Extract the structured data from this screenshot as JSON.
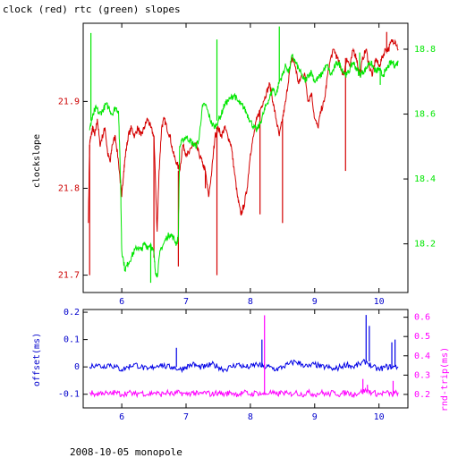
{
  "title": "clock (red) rtc (green) slopes",
  "footer": "2008-10-05 monopole",
  "colors": {
    "clock": "#d40000",
    "rtc": "#00e600",
    "offset": "#0000e6",
    "rnd_trip": "#ff00ff",
    "clock_axis": "#cc0000",
    "rtc_axis": "#00e600",
    "x_axis": "#0000cc",
    "offset_axis": "#0000cc",
    "rnd_axis": "#ff00ff"
  },
  "chart_data": [
    {
      "type": "line",
      "title": "clock (red) rtc (green) slopes",
      "xlabel": "",
      "ylabel": "clockslope",
      "xlim": [
        5.4,
        10.45
      ],
      "ylim": [
        21.68,
        21.99
      ],
      "y2lim": [
        18.05,
        18.88
      ],
      "xticks": [
        6,
        7,
        8,
        9,
        10
      ],
      "yticks": [
        21.7,
        21.8,
        21.9
      ],
      "y2ticks": [
        18.2,
        18.4,
        18.6,
        18.8
      ],
      "grid": false,
      "series": [
        {
          "name": "clock",
          "axis": "left",
          "x": [
            5.48,
            5.5,
            5.52,
            5.55,
            5.58,
            5.62,
            5.66,
            5.7,
            5.74,
            5.78,
            5.82,
            5.85,
            5.9,
            5.95,
            6.0,
            6.03,
            6.06,
            6.1,
            6.15,
            6.2,
            6.25,
            6.3,
            6.35,
            6.4,
            6.45,
            6.5,
            6.55,
            6.58,
            6.62,
            6.66,
            6.7,
            6.75,
            6.8,
            6.85,
            6.9,
            6.95,
            7.0,
            7.05,
            7.1,
            7.15,
            7.2,
            7.25,
            7.3,
            7.35,
            7.4,
            7.45,
            7.5,
            7.55,
            7.6,
            7.65,
            7.7,
            7.75,
            7.8,
            7.85,
            7.9,
            7.95,
            8.0,
            8.05,
            8.1,
            8.15,
            8.2,
            8.25,
            8.3,
            8.35,
            8.4,
            8.45,
            8.5,
            8.55,
            8.6,
            8.65,
            8.7,
            8.75,
            8.8,
            8.85,
            8.9,
            8.95,
            9.0,
            9.05,
            9.1,
            9.15,
            9.2,
            9.25,
            9.3,
            9.35,
            9.4,
            9.45,
            9.5,
            9.55,
            9.6,
            9.65,
            9.7,
            9.75,
            9.8,
            9.85,
            9.9,
            9.95,
            10.0,
            10.05,
            10.1,
            10.15,
            10.2,
            10.25,
            10.3
          ],
          "y": [
            21.76,
            21.85,
            21.86,
            21.87,
            21.86,
            21.88,
            21.85,
            21.86,
            21.87,
            21.84,
            21.83,
            21.85,
            21.86,
            21.83,
            21.79,
            21.82,
            21.84,
            21.86,
            21.87,
            21.86,
            21.87,
            21.86,
            21.87,
            21.88,
            21.87,
            21.86,
            21.75,
            21.82,
            21.87,
            21.88,
            21.87,
            21.86,
            21.84,
            21.83,
            21.82,
            21.85,
            21.84,
            21.84,
            21.85,
            21.85,
            21.84,
            21.83,
            21.82,
            21.79,
            21.82,
            21.86,
            21.87,
            21.86,
            21.87,
            21.86,
            21.85,
            21.82,
            21.79,
            21.77,
            21.78,
            21.8,
            21.84,
            21.86,
            21.88,
            21.89,
            21.9,
            21.91,
            21.92,
            21.9,
            21.88,
            21.86,
            21.88,
            21.9,
            21.93,
            21.95,
            21.94,
            21.92,
            21.93,
            21.93,
            21.9,
            21.91,
            21.88,
            21.87,
            21.89,
            21.9,
            21.93,
            21.95,
            21.96,
            21.95,
            21.94,
            21.93,
            21.95,
            21.94,
            21.96,
            21.95,
            21.93,
            21.95,
            21.96,
            21.94,
            21.93,
            21.95,
            21.94,
            21.95,
            21.96,
            21.96,
            21.97,
            21.97,
            21.96
          ],
          "spikes": [
            {
              "x": 5.5,
              "y": 21.7
            },
            {
              "x": 6.5,
              "y": 21.72
            },
            {
              "x": 6.88,
              "y": 21.71
            },
            {
              "x": 7.3,
              "y": 21.8
            },
            {
              "x": 7.48,
              "y": 21.7
            },
            {
              "x": 8.15,
              "y": 21.77
            },
            {
              "x": 8.5,
              "y": 21.76
            },
            {
              "x": 9.48,
              "y": 21.82
            },
            {
              "x": 10.12,
              "y": 21.98
            }
          ]
        },
        {
          "name": "rtc",
          "axis": "right",
          "x": [
            5.5,
            5.53,
            5.56,
            5.6,
            5.65,
            5.7,
            5.75,
            5.8,
            5.85,
            5.9,
            5.95,
            5.98,
            6.0,
            6.05,
            6.1,
            6.15,
            6.2,
            6.25,
            6.3,
            6.35,
            6.4,
            6.45,
            6.5,
            6.52,
            6.55,
            6.6,
            6.65,
            6.7,
            6.75,
            6.8,
            6.85,
            6.88,
            6.9,
            6.95,
            7.0,
            7.05,
            7.1,
            7.15,
            7.2,
            7.25,
            7.3,
            7.35,
            7.4,
            7.45,
            7.5,
            7.55,
            7.6,
            7.65,
            7.7,
            7.75,
            7.8,
            7.85,
            7.9,
            7.95,
            8.0,
            8.05,
            8.1,
            8.15,
            8.2,
            8.25,
            8.3,
            8.35,
            8.4,
            8.45,
            8.5,
            8.55,
            8.6,
            8.65,
            8.7,
            8.75,
            8.8,
            8.85,
            8.9,
            8.95,
            9.0,
            9.05,
            9.1,
            9.15,
            9.2,
            9.25,
            9.3,
            9.35,
            9.4,
            9.45,
            9.5,
            9.55,
            9.6,
            9.65,
            9.7,
            9.75,
            9.8,
            9.85,
            9.9,
            9.95,
            10.0,
            10.05,
            10.1,
            10.15,
            10.2,
            10.25,
            10.3
          ],
          "y": [
            18.55,
            18.58,
            18.6,
            18.62,
            18.6,
            18.61,
            18.63,
            18.62,
            18.6,
            18.62,
            18.61,
            18.4,
            18.18,
            18.12,
            18.14,
            18.16,
            18.18,
            18.19,
            18.18,
            18.2,
            18.19,
            18.2,
            18.17,
            18.12,
            18.1,
            18.18,
            18.2,
            18.22,
            18.23,
            18.22,
            18.2,
            18.22,
            18.5,
            18.52,
            18.53,
            18.52,
            18.51,
            18.5,
            18.52,
            18.62,
            18.63,
            18.6,
            18.57,
            18.56,
            18.58,
            18.6,
            18.63,
            18.64,
            18.65,
            18.66,
            18.64,
            18.63,
            18.62,
            18.6,
            18.58,
            18.56,
            18.55,
            18.57,
            18.6,
            18.63,
            18.65,
            18.68,
            18.66,
            18.7,
            18.72,
            18.75,
            18.73,
            18.78,
            18.76,
            18.74,
            18.72,
            18.7,
            18.72,
            18.73,
            18.7,
            18.71,
            18.72,
            18.74,
            18.75,
            18.72,
            18.74,
            18.76,
            18.75,
            18.73,
            18.72,
            18.74,
            18.76,
            18.74,
            18.72,
            18.73,
            18.74,
            18.76,
            18.75,
            18.73,
            18.74,
            18.72,
            18.73,
            18.75,
            18.76,
            18.75,
            18.76
          ],
          "spikes": [
            {
              "x": 5.52,
              "y": 18.85
            },
            {
              "x": 6.45,
              "y": 18.08
            },
            {
              "x": 7.48,
              "y": 18.83
            },
            {
              "x": 8.45,
              "y": 18.87
            },
            {
              "x": 9.7,
              "y": 18.79
            },
            {
              "x": 10.02,
              "y": 18.69
            }
          ]
        }
      ]
    },
    {
      "type": "line",
      "xlabel": "",
      "ylabel": "offset(ms)",
      "y2label": "rnd-trip(ms)",
      "xlim": [
        5.4,
        10.45
      ],
      "ylim": [
        -0.15,
        0.21
      ],
      "y2lim": [
        0.13,
        0.64
      ],
      "xticks": [
        6,
        7,
        8,
        9,
        10
      ],
      "yticks": [
        -0.1,
        0,
        0.1,
        0.2
      ],
      "y2ticks": [
        0.2,
        0.3,
        0.4,
        0.5,
        0.6
      ],
      "grid": false,
      "series": [
        {
          "name": "offset",
          "axis": "left",
          "x": [
            5.5,
            5.6,
            5.7,
            5.8,
            5.9,
            6.0,
            6.1,
            6.2,
            6.3,
            6.4,
            6.5,
            6.6,
            6.7,
            6.8,
            6.9,
            7.0,
            7.1,
            7.2,
            7.3,
            7.4,
            7.5,
            7.6,
            7.7,
            7.8,
            7.9,
            8.0,
            8.1,
            8.2,
            8.3,
            8.4,
            8.5,
            8.6,
            8.7,
            8.8,
            8.9,
            9.0,
            9.1,
            9.2,
            9.3,
            9.4,
            9.5,
            9.6,
            9.7,
            9.8,
            9.9,
            10.0,
            10.1,
            10.2,
            10.3
          ],
          "y": [
            0.0,
            0.01,
            0.0,
            0.01,
            0.0,
            -0.01,
            0.0,
            0.01,
            0.0,
            -0.01,
            0.0,
            0.01,
            0.0,
            0.0,
            -0.01,
            0.0,
            0.01,
            0.0,
            0.0,
            0.01,
            0.0,
            -0.01,
            0.0,
            0.01,
            0.0,
            0.0,
            0.01,
            0.0,
            0.0,
            -0.01,
            0.0,
            0.01,
            0.02,
            0.01,
            0.0,
            0.01,
            0.0,
            0.0,
            -0.01,
            0.0,
            0.01,
            0.0,
            0.01,
            0.02,
            0.0,
            -0.01,
            0.0,
            0.0,
            0.0
          ],
          "spikes": [
            {
              "x": 6.85,
              "y": 0.07
            },
            {
              "x": 8.18,
              "y": 0.1
            },
            {
              "x": 9.8,
              "y": 0.19
            },
            {
              "x": 9.85,
              "y": 0.15
            },
            {
              "x": 10.2,
              "y": 0.09
            },
            {
              "x": 10.25,
              "y": 0.1
            }
          ]
        },
        {
          "name": "rnd-trip",
          "axis": "right",
          "x": [
            5.5,
            5.6,
            5.7,
            5.8,
            5.9,
            6.0,
            6.1,
            6.2,
            6.3,
            6.4,
            6.5,
            6.6,
            6.7,
            6.8,
            6.9,
            7.0,
            7.1,
            7.2,
            7.3,
            7.4,
            7.5,
            7.6,
            7.7,
            7.8,
            7.9,
            8.0,
            8.1,
            8.2,
            8.3,
            8.4,
            8.5,
            8.6,
            8.7,
            8.8,
            8.9,
            9.0,
            9.1,
            9.2,
            9.3,
            9.4,
            9.5,
            9.6,
            9.7,
            9.8,
            9.9,
            10.0,
            10.1,
            10.2,
            10.3
          ],
          "y": [
            0.21,
            0.2,
            0.21,
            0.2,
            0.21,
            0.2,
            0.21,
            0.2,
            0.21,
            0.2,
            0.21,
            0.2,
            0.21,
            0.2,
            0.21,
            0.2,
            0.21,
            0.2,
            0.21,
            0.2,
            0.21,
            0.2,
            0.21,
            0.2,
            0.21,
            0.2,
            0.21,
            0.2,
            0.21,
            0.2,
            0.21,
            0.2,
            0.21,
            0.2,
            0.21,
            0.2,
            0.21,
            0.2,
            0.21,
            0.2,
            0.21,
            0.2,
            0.21,
            0.22,
            0.21,
            0.2,
            0.21,
            0.2,
            0.21
          ],
          "spikes": [
            {
              "x": 8.22,
              "y": 0.61
            },
            {
              "x": 9.75,
              "y": 0.28
            },
            {
              "x": 9.82,
              "y": 0.25
            },
            {
              "x": 10.22,
              "y": 0.27
            }
          ]
        }
      ]
    }
  ]
}
